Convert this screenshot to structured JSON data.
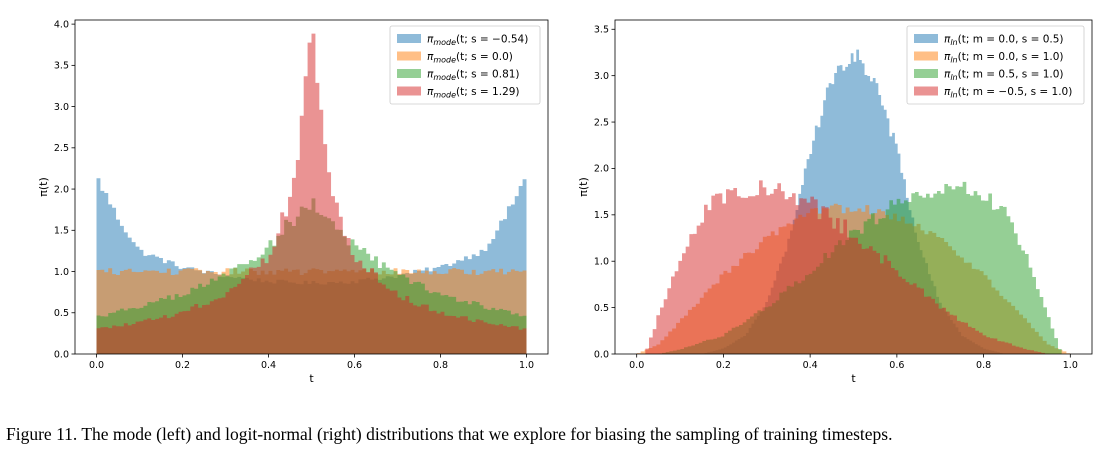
{
  "caption": "Figure 11. The mode (left) and logit-normal (right) distributions that we explore for biasing the sampling of training timesteps.",
  "chart_data": [
    {
      "type": "histogram",
      "xlabel": "t",
      "ylabel": "π(t)",
      "xlim": [
        -0.05,
        1.05
      ],
      "ylim": [
        0,
        4.05
      ],
      "xticks": [
        "0.0",
        "0.2",
        "0.4",
        "0.6",
        "0.8",
        "1.0"
      ],
      "yticks": [
        "0.0",
        "0.5",
        "1.0",
        "1.5",
        "2.0",
        "2.5",
        "3.0",
        "3.5",
        "4.0"
      ],
      "grid": false,
      "legend_position": "top-right",
      "series": [
        {
          "name": "πmode(t; s = −0.54)",
          "label_main": "π",
          "label_sub": "mode",
          "label_rest": "(t; s = −0.54)",
          "color": "#1f77b4",
          "x": [
            0.0,
            0.05,
            0.1,
            0.2,
            0.3,
            0.4,
            0.5,
            0.6,
            0.7,
            0.8,
            0.9,
            0.95,
            1.0
          ],
          "y": [
            2.15,
            1.65,
            1.25,
            1.05,
            0.95,
            0.88,
            0.86,
            0.88,
            0.95,
            1.05,
            1.25,
            1.65,
            2.15
          ]
        },
        {
          "name": "πmode(t; s = 0.0)",
          "label_main": "π",
          "label_sub": "mode",
          "label_rest": "(t; s = 0.0)",
          "color": "#ff7f0e",
          "x": [
            0.0,
            0.5,
            1.0
          ],
          "y": [
            1.0,
            1.0,
            1.0
          ]
        },
        {
          "name": "πmode(t; s = 0.81)",
          "label_main": "π",
          "label_sub": "mode",
          "label_rest": "(t; s = 0.81)",
          "color": "#2ca02c",
          "x": [
            0.0,
            0.1,
            0.2,
            0.3,
            0.4,
            0.45,
            0.5,
            0.55,
            0.6,
            0.7,
            0.8,
            0.9,
            1.0
          ],
          "y": [
            0.45,
            0.58,
            0.72,
            0.95,
            1.3,
            1.6,
            1.82,
            1.6,
            1.3,
            0.95,
            0.72,
            0.58,
            0.45
          ]
        },
        {
          "name": "πmode(t; s = 1.29)",
          "label_main": "π",
          "label_sub": "mode",
          "label_rest": "(t; s = 1.29)",
          "color": "#d62728",
          "x": [
            0.0,
            0.1,
            0.2,
            0.3,
            0.4,
            0.45,
            0.48,
            0.5,
            0.52,
            0.55,
            0.6,
            0.7,
            0.8,
            0.9,
            1.0
          ],
          "y": [
            0.3,
            0.38,
            0.5,
            0.72,
            1.2,
            1.9,
            2.9,
            3.9,
            2.9,
            1.9,
            1.2,
            0.72,
            0.5,
            0.38,
            0.3
          ]
        }
      ]
    },
    {
      "type": "histogram",
      "xlabel": "t",
      "ylabel": "π(t)",
      "xlim": [
        -0.05,
        1.05
      ],
      "ylim": [
        0,
        3.6
      ],
      "xticks": [
        "0.0",
        "0.2",
        "0.4",
        "0.6",
        "0.8",
        "1.0"
      ],
      "yticks": [
        "0.0",
        "0.5",
        "1.0",
        "1.5",
        "2.0",
        "2.5",
        "3.0",
        "3.5"
      ],
      "grid": false,
      "legend_position": "top-right",
      "series": [
        {
          "name": "πln(t; m = 0.0, s = 0.5)",
          "label_main": "π",
          "label_sub": "ln",
          "label_rest": "(t; m = 0.0, s = 0.5)",
          "color": "#1f77b4",
          "x": [
            0.15,
            0.2,
            0.25,
            0.3,
            0.35,
            0.4,
            0.45,
            0.5,
            0.55,
            0.6,
            0.65,
            0.7,
            0.75,
            0.8,
            0.85
          ],
          "y": [
            0.0,
            0.06,
            0.2,
            0.55,
            1.2,
            2.2,
            2.95,
            3.25,
            2.95,
            2.2,
            1.2,
            0.55,
            0.2,
            0.06,
            0.0
          ]
        },
        {
          "name": "πln(t; m = 0.0, s = 1.0)",
          "label_main": "π",
          "label_sub": "ln",
          "label_rest": "(t; m = 0.0, s = 1.0)",
          "color": "#ff7f0e",
          "x": [
            0.0,
            0.05,
            0.1,
            0.2,
            0.3,
            0.4,
            0.5,
            0.6,
            0.7,
            0.8,
            0.9,
            0.95,
            1.0
          ],
          "y": [
            0.0,
            0.1,
            0.35,
            0.85,
            1.25,
            1.5,
            1.6,
            1.5,
            1.25,
            0.85,
            0.35,
            0.1,
            0.0
          ]
        },
        {
          "name": "πln(t; m = 0.5, s = 1.0)",
          "label_main": "π",
          "label_sub": "ln",
          "label_rest": "(t; m = 0.5, s = 1.0)",
          "color": "#2ca02c",
          "x": [
            0.05,
            0.1,
            0.2,
            0.3,
            0.4,
            0.5,
            0.6,
            0.7,
            0.75,
            0.8,
            0.85,
            0.9,
            0.95,
            0.98
          ],
          "y": [
            0.0,
            0.05,
            0.2,
            0.5,
            0.9,
            1.3,
            1.62,
            1.78,
            1.8,
            1.72,
            1.5,
            1.05,
            0.4,
            0.0
          ]
        },
        {
          "name": "πln(t; m = −0.5, s = 1.0)",
          "label_main": "π",
          "label_sub": "ln",
          "label_rest": "(t; m = −0.5, s = 1.0)",
          "color": "#d62728",
          "x": [
            0.02,
            0.05,
            0.1,
            0.15,
            0.2,
            0.25,
            0.3,
            0.4,
            0.5,
            0.6,
            0.7,
            0.8,
            0.9,
            0.95
          ],
          "y": [
            0.0,
            0.4,
            1.05,
            1.5,
            1.72,
            1.8,
            1.78,
            1.62,
            1.3,
            0.9,
            0.5,
            0.2,
            0.05,
            0.0
          ]
        }
      ]
    }
  ]
}
